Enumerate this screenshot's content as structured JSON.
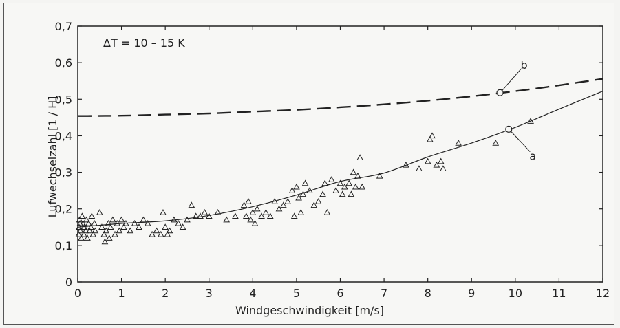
{
  "chart_data": {
    "type": "scatter",
    "annotation": "ΔT = 10 – 15 K",
    "xlabel": "Windgeschwindigkeit   [m/s]",
    "ylabel": "Lufwechselzahl [1 / H]",
    "xlim": [
      0,
      12
    ],
    "ylim": [
      0,
      0.7
    ],
    "x_ticks": [
      0,
      1,
      2,
      3,
      4,
      5,
      6,
      7,
      8,
      9,
      10,
      11,
      12
    ],
    "y_ticks": [
      0,
      0.1,
      0.2,
      0.3,
      0.4,
      0.5,
      0.6,
      0.7
    ],
    "x_tick_labels": [
      "0",
      "1",
      "2",
      "3",
      "4",
      "5",
      "6",
      "7",
      "8",
      "9",
      "10",
      "11",
      "12"
    ],
    "y_tick_labels": [
      "0",
      "0,1",
      "0,2",
      "0,3",
      "0,4",
      "0,5",
      "0,6",
      "0,7"
    ],
    "grid": false,
    "curves": [
      {
        "label": "a",
        "style": "solid",
        "points": [
          [
            0,
            0.15
          ],
          [
            1,
            0.16
          ],
          [
            2,
            0.167
          ],
          [
            3,
            0.182
          ],
          [
            4,
            0.206
          ],
          [
            5,
            0.238
          ],
          [
            6,
            0.275
          ],
          [
            7,
            0.298
          ],
          [
            8,
            0.342
          ],
          [
            9,
            0.38
          ],
          [
            10,
            0.423
          ],
          [
            11,
            0.473
          ],
          [
            12,
            0.522
          ]
        ],
        "marker": [
          9.85,
          0.418
        ],
        "label_pos": [
          10.4,
          0.345
        ]
      },
      {
        "label": "b",
        "style": "dashed",
        "points": [
          [
            0,
            0.454
          ],
          [
            1,
            0.455
          ],
          [
            2,
            0.458
          ],
          [
            3,
            0.461
          ],
          [
            4,
            0.466
          ],
          [
            5,
            0.471
          ],
          [
            6,
            0.478
          ],
          [
            7,
            0.486
          ],
          [
            8,
            0.496
          ],
          [
            9,
            0.508
          ],
          [
            10,
            0.522
          ],
          [
            11,
            0.538
          ],
          [
            12,
            0.556
          ]
        ],
        "marker": [
          9.65,
          0.518
        ],
        "label_pos": [
          10.2,
          0.595
        ]
      }
    ],
    "scatter_points": [
      [
        0.02,
        0.13
      ],
      [
        0.03,
        0.15
      ],
      [
        0.04,
        0.17
      ],
      [
        0.05,
        0.16
      ],
      [
        0.06,
        0.14
      ],
      [
        0.08,
        0.12
      ],
      [
        0.1,
        0.18
      ],
      [
        0.12,
        0.16
      ],
      [
        0.14,
        0.13
      ],
      [
        0.15,
        0.15
      ],
      [
        0.18,
        0.14
      ],
      [
        0.2,
        0.17
      ],
      [
        0.22,
        0.12
      ],
      [
        0.25,
        0.16
      ],
      [
        0.27,
        0.14
      ],
      [
        0.3,
        0.15
      ],
      [
        0.32,
        0.18
      ],
      [
        0.35,
        0.13
      ],
      [
        0.38,
        0.16
      ],
      [
        0.4,
        0.14
      ],
      [
        0.5,
        0.19
      ],
      [
        0.55,
        0.15
      ],
      [
        0.6,
        0.13
      ],
      [
        0.62,
        0.11
      ],
      [
        0.65,
        0.14
      ],
      [
        0.7,
        0.16
      ],
      [
        0.72,
        0.12
      ],
      [
        0.75,
        0.15
      ],
      [
        0.8,
        0.17
      ],
      [
        0.85,
        0.13
      ],
      [
        0.9,
        0.16
      ],
      [
        0.95,
        0.14
      ],
      [
        1.0,
        0.17
      ],
      [
        1.05,
        0.15
      ],
      [
        1.1,
        0.16
      ],
      [
        1.2,
        0.14
      ],
      [
        1.3,
        0.16
      ],
      [
        1.4,
        0.15
      ],
      [
        1.5,
        0.17
      ],
      [
        1.6,
        0.16
      ],
      [
        1.7,
        0.13
      ],
      [
        1.8,
        0.14
      ],
      [
        1.9,
        0.13
      ],
      [
        1.95,
        0.19
      ],
      [
        2.0,
        0.15
      ],
      [
        2.05,
        0.13
      ],
      [
        2.1,
        0.14
      ],
      [
        2.2,
        0.17
      ],
      [
        2.3,
        0.16
      ],
      [
        2.4,
        0.15
      ],
      [
        2.5,
        0.17
      ],
      [
        2.6,
        0.21
      ],
      [
        2.7,
        0.18
      ],
      [
        2.8,
        0.18
      ],
      [
        2.9,
        0.19
      ],
      [
        3.0,
        0.18
      ],
      [
        3.2,
        0.19
      ],
      [
        3.4,
        0.17
      ],
      [
        3.6,
        0.18
      ],
      [
        3.8,
        0.21
      ],
      [
        3.85,
        0.18
      ],
      [
        3.9,
        0.22
      ],
      [
        3.95,
        0.17
      ],
      [
        4.0,
        0.19
      ],
      [
        4.05,
        0.16
      ],
      [
        4.1,
        0.2
      ],
      [
        4.2,
        0.18
      ],
      [
        4.3,
        0.19
      ],
      [
        4.4,
        0.18
      ],
      [
        4.5,
        0.22
      ],
      [
        4.6,
        0.2
      ],
      [
        4.7,
        0.21
      ],
      [
        4.8,
        0.22
      ],
      [
        4.9,
        0.25
      ],
      [
        4.95,
        0.18
      ],
      [
        5.0,
        0.26
      ],
      [
        5.05,
        0.23
      ],
      [
        5.1,
        0.19
      ],
      [
        5.15,
        0.24
      ],
      [
        5.2,
        0.27
      ],
      [
        5.3,
        0.25
      ],
      [
        5.4,
        0.21
      ],
      [
        5.5,
        0.22
      ],
      [
        5.6,
        0.24
      ],
      [
        5.65,
        0.27
      ],
      [
        5.7,
        0.19
      ],
      [
        5.8,
        0.28
      ],
      [
        5.9,
        0.25
      ],
      [
        6.0,
        0.27
      ],
      [
        6.05,
        0.24
      ],
      [
        6.1,
        0.26
      ],
      [
        6.2,
        0.27
      ],
      [
        6.25,
        0.24
      ],
      [
        6.3,
        0.3
      ],
      [
        6.35,
        0.26
      ],
      [
        6.4,
        0.29
      ],
      [
        6.45,
        0.34
      ],
      [
        6.5,
        0.26
      ],
      [
        6.9,
        0.29
      ],
      [
        7.5,
        0.32
      ],
      [
        7.8,
        0.31
      ],
      [
        8.0,
        0.33
      ],
      [
        8.05,
        0.39
      ],
      [
        8.1,
        0.4
      ],
      [
        8.2,
        0.32
      ],
      [
        8.3,
        0.33
      ],
      [
        8.35,
        0.31
      ],
      [
        8.7,
        0.38
      ],
      [
        9.55,
        0.38
      ],
      [
        10.35,
        0.44
      ]
    ],
    "colors": {
      "ink": "#222222",
      "background": "#f7f7f5"
    }
  }
}
